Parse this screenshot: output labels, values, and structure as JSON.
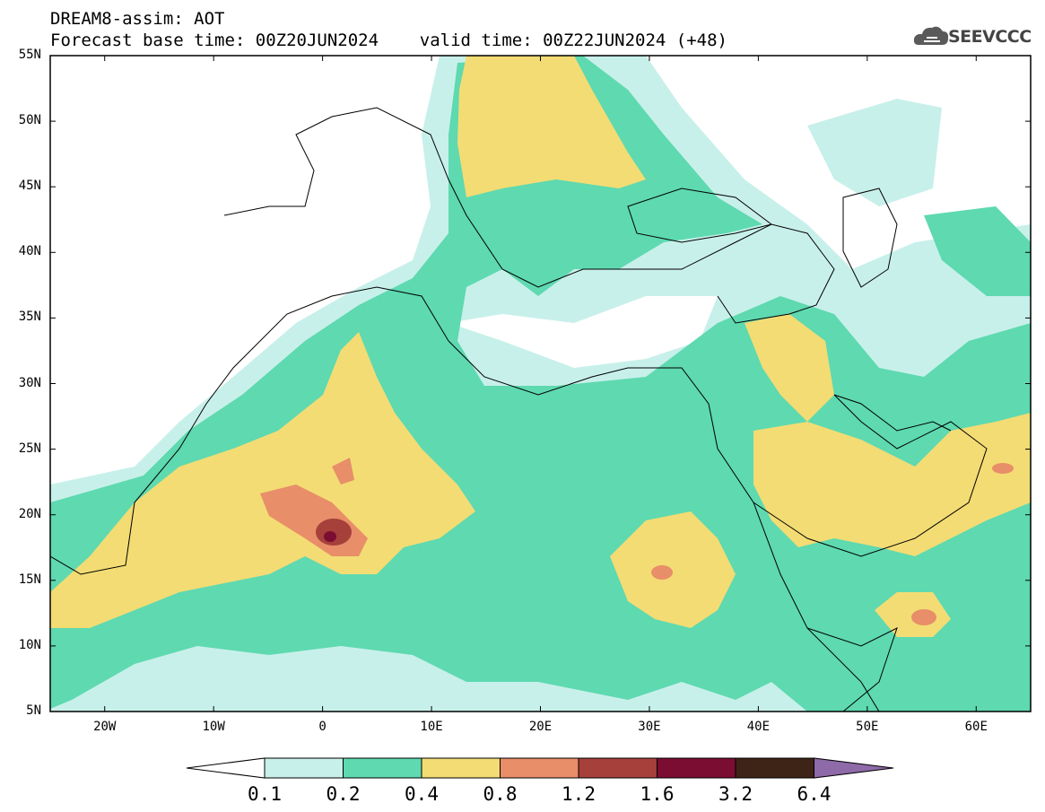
{
  "header": {
    "line1": "DREAM8-assim: AOT",
    "line2": "Forecast base time: 00Z20JUN2024    valid time: 00Z22JUN2024 (+48)"
  },
  "logo": {
    "text": "SEEVCCC",
    "icon": "cloud-logo-icon"
  },
  "map": {
    "variable": "AOT",
    "region": {
      "lon_range": [
        -25,
        65
      ],
      "lat_range": [
        5,
        55
      ]
    },
    "lat_ticks": [
      "5N",
      "10N",
      "15N",
      "20N",
      "25N",
      "30N",
      "35N",
      "40N",
      "45N",
      "50N",
      "55N"
    ],
    "lon_ticks": [
      "20W",
      "10W",
      "0",
      "10E",
      "20E",
      "30E",
      "40E",
      "50E",
      "60E"
    ],
    "aot_maxima": [
      {
        "lon": 1.0,
        "lat": 18.5,
        "level": "3.2"
      },
      {
        "lon": 55.0,
        "lat": 12.0,
        "level": "1.2"
      },
      {
        "lon": 31.0,
        "lat": 15.5,
        "level": "1.2"
      }
    ]
  },
  "colorbar": {
    "labels": [
      "0.1",
      "0.2",
      "0.4",
      "0.8",
      "1.2",
      "1.6",
      "3.2",
      "6.4"
    ],
    "colors": [
      "#c8f0ea",
      "#5ed9b0",
      "#f3dc74",
      "#e88e69",
      "#a6403b",
      "#7b0d33",
      "#3d2416",
      "#8e6aa8"
    ]
  }
}
